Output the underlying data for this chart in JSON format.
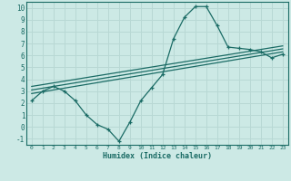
{
  "xlabel": "Humidex (Indice chaleur)",
  "bg_color": "#cce9e5",
  "grid_color": "#b8d8d4",
  "line_color": "#1a6b65",
  "xlim": [
    -0.5,
    23.5
  ],
  "ylim": [
    -1.5,
    10.5
  ],
  "xticks": [
    0,
    1,
    2,
    3,
    4,
    5,
    6,
    7,
    8,
    9,
    10,
    11,
    12,
    13,
    14,
    15,
    16,
    17,
    18,
    19,
    20,
    21,
    22,
    23
  ],
  "yticks": [
    -1,
    0,
    1,
    2,
    3,
    4,
    5,
    6,
    7,
    8,
    9,
    10
  ],
  "curve1_x": [
    0,
    1,
    2,
    3,
    4,
    5,
    6,
    7,
    8,
    9,
    10,
    11,
    12,
    13,
    14,
    15,
    16,
    17,
    18,
    19,
    20,
    21,
    22,
    23
  ],
  "curve1_y": [
    2.2,
    3.0,
    3.4,
    3.0,
    2.2,
    1.0,
    0.2,
    -0.2,
    -1.2,
    0.4,
    2.2,
    3.3,
    4.4,
    7.4,
    9.2,
    10.1,
    10.1,
    8.5,
    6.7,
    6.6,
    6.5,
    6.3,
    5.8,
    6.1
  ],
  "line2_x": [
    0,
    23
  ],
  "line2_y": [
    2.8,
    6.3
  ],
  "line3_x": [
    0,
    23
  ],
  "line3_y": [
    3.1,
    6.55
  ],
  "line4_x": [
    0,
    23
  ],
  "line4_y": [
    3.4,
    6.8
  ]
}
